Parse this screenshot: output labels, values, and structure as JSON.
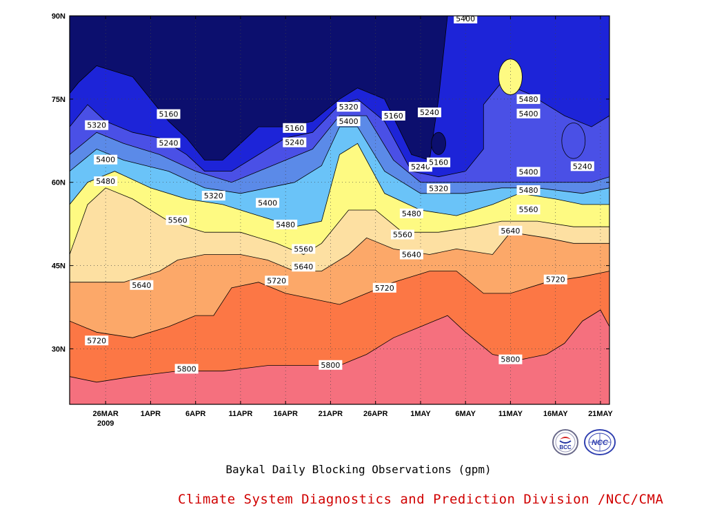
{
  "chart_data": {
    "type": "heatmap",
    "subtype": "filled-contour time-latitude section",
    "title": "Baykal Daily Blocking Observations (gpm)",
    "credit": "Climate System Diagnostics and Prediction Division /NCC/CMA",
    "x_axis": {
      "ticks": [
        "26MAR",
        "1APR",
        "6APR",
        "11APR",
        "16APR",
        "21APR",
        "26APR",
        "1MAY",
        "6MAY",
        "11MAY",
        "16MAY",
        "21MAY"
      ],
      "year_label": "2009",
      "range": [
        "2009-03-22",
        "2009-05-21"
      ]
    },
    "y_axis": {
      "ticks": [
        "30N",
        "45N",
        "60N",
        "75N",
        "90N"
      ],
      "tick_values": [
        30,
        45,
        60,
        75,
        90
      ],
      "range": [
        20,
        90
      ]
    },
    "levels": [
      5160,
      5240,
      5320,
      5400,
      5480,
      5560,
      5640,
      5720,
      5800
    ],
    "colors": [
      "#0c0f6e",
      "#1d24d8",
      "#4a50e6",
      "#5b8ae8",
      "#6ac3f8",
      "#fefa82",
      "#fde0a2",
      "#fca869",
      "#fc7745",
      "#f5707e"
    ],
    "color_bands": [
      {
        "range": "< 5160",
        "color": "#0c0f6e"
      },
      {
        "range": "5160-5240",
        "color": "#1d24d8"
      },
      {
        "range": "5240-5320",
        "color": "#4a50e6"
      },
      {
        "range": "5320-5400",
        "color": "#5b8ae8"
      },
      {
        "range": "5400-5480",
        "color": "#6ac3f8"
      },
      {
        "range": "5480-5560",
        "color": "#fefa82"
      },
      {
        "range": "5560-5640",
        "color": "#fde0a2"
      },
      {
        "range": "5640-5720",
        "color": "#fca869"
      },
      {
        "range": "5720-5800",
        "color": "#fc7745"
      },
      {
        "range": "> 5800",
        "color": "#f5707e"
      }
    ],
    "contours": [
      {
        "level": 5160,
        "points": [
          [
            "2009-03-22",
            76
          ],
          [
            "2009-03-23",
            78
          ],
          [
            "2009-03-25",
            81
          ],
          [
            "2009-03-27",
            80
          ],
          [
            "2009-03-29",
            79
          ],
          [
            "2009-03-31",
            75
          ],
          [
            "2009-04-02",
            71
          ],
          [
            "2009-04-04",
            68
          ],
          [
            "2009-04-06",
            64
          ],
          [
            "2009-04-08",
            64
          ],
          [
            "2009-04-10",
            67
          ],
          [
            "2009-04-12",
            70
          ],
          [
            "2009-04-15",
            70
          ],
          [
            "2009-04-18",
            71
          ],
          [
            "2009-04-21",
            75
          ],
          [
            "2009-04-23",
            77
          ],
          [
            "2009-04-26",
            75
          ],
          [
            "2009-04-29",
            65
          ],
          [
            "2009-05-01",
            64
          ],
          [
            "2009-05-02",
            75
          ],
          [
            "2009-05-03",
            90
          ]
        ]
      },
      {
        "level": 5240,
        "points": [
          [
            "2009-03-22",
            70
          ],
          [
            "2009-03-24",
            74
          ],
          [
            "2009-03-26",
            71
          ],
          [
            "2009-03-29",
            69
          ],
          [
            "2009-04-01",
            68
          ],
          [
            "2009-04-04",
            65
          ],
          [
            "2009-04-06",
            62
          ],
          [
            "2009-04-09",
            62
          ],
          [
            "2009-04-12",
            65
          ],
          [
            "2009-04-15",
            68
          ],
          [
            "2009-04-18",
            69
          ],
          [
            "2009-04-21",
            74
          ],
          [
            "2009-04-23",
            75
          ],
          [
            "2009-04-26",
            71
          ],
          [
            "2009-04-29",
            62
          ],
          [
            "2009-05-02",
            61
          ],
          [
            "2009-05-05",
            62
          ],
          [
            "2009-05-07",
            66
          ],
          [
            "2009-05-07",
            74
          ],
          [
            "2009-05-09",
            78
          ],
          [
            "2009-05-12",
            76
          ],
          [
            "2009-05-16",
            72
          ],
          [
            "2009-05-19",
            70
          ],
          [
            "2009-05-21",
            72
          ]
        ]
      },
      {
        "level": 5320,
        "points": [
          [
            "2009-03-22",
            65
          ],
          [
            "2009-03-25",
            69
          ],
          [
            "2009-03-28",
            67
          ],
          [
            "2009-04-01",
            65
          ],
          [
            "2009-04-05",
            62
          ],
          [
            "2009-04-09",
            60
          ],
          [
            "2009-04-12",
            62
          ],
          [
            "2009-04-15",
            64
          ],
          [
            "2009-04-18",
            66
          ],
          [
            "2009-04-21",
            72
          ],
          [
            "2009-04-24",
            72
          ],
          [
            "2009-04-27",
            64
          ],
          [
            "2009-04-30",
            60
          ],
          [
            "2009-05-04",
            60
          ],
          [
            "2009-05-08",
            60
          ],
          [
            "2009-05-12",
            60
          ],
          [
            "2009-05-16",
            60
          ],
          [
            "2009-05-19",
            60
          ],
          [
            "2009-05-21",
            61
          ]
        ]
      },
      {
        "level": 5400,
        "points": [
          [
            "2009-03-22",
            62
          ],
          [
            "2009-03-25",
            66
          ],
          [
            "2009-03-28",
            64
          ],
          [
            "2009-04-02",
            62
          ],
          [
            "2009-04-06",
            59
          ],
          [
            "2009-04-10",
            58
          ],
          [
            "2009-04-13",
            59
          ],
          [
            "2009-04-16",
            60
          ],
          [
            "2009-04-19",
            63
          ],
          [
            "2009-04-21",
            70
          ],
          [
            "2009-04-23",
            70
          ],
          [
            "2009-04-26",
            62
          ],
          [
            "2009-04-30",
            58
          ],
          [
            "2009-05-05",
            58
          ],
          [
            "2009-05-09",
            59
          ],
          [
            "2009-05-13",
            59
          ],
          [
            "2009-05-18",
            58
          ],
          [
            "2009-05-21",
            59
          ]
        ]
      },
      {
        "level": 5480,
        "points": [
          [
            "2009-03-22",
            56
          ],
          [
            "2009-03-24",
            60
          ],
          [
            "2009-03-27",
            62
          ],
          [
            "2009-03-31",
            59
          ],
          [
            "2009-04-04",
            57
          ],
          [
            "2009-04-08",
            56
          ],
          [
            "2009-04-12",
            54
          ],
          [
            "2009-04-16",
            52
          ],
          [
            "2009-04-19",
            53
          ],
          [
            "2009-04-21",
            65
          ],
          [
            "2009-04-23",
            67
          ],
          [
            "2009-04-26",
            58
          ],
          [
            "2009-04-30",
            55
          ],
          [
            "2009-05-04",
            54
          ],
          [
            "2009-05-08",
            56
          ],
          [
            "2009-05-11",
            58
          ],
          [
            "2009-05-15",
            57
          ],
          [
            "2009-05-18",
            56
          ],
          [
            "2009-05-21",
            56
          ]
        ]
      },
      {
        "level": 5560,
        "points": [
          [
            "2009-03-22",
            47
          ],
          [
            "2009-03-24",
            56
          ],
          [
            "2009-03-26",
            59
          ],
          [
            "2009-03-29",
            57
          ],
          [
            "2009-04-02",
            53
          ],
          [
            "2009-04-06",
            51
          ],
          [
            "2009-04-10",
            51
          ],
          [
            "2009-04-14",
            49
          ],
          [
            "2009-04-17",
            47
          ],
          [
            "2009-04-19",
            49
          ],
          [
            "2009-04-22",
            55
          ],
          [
            "2009-04-25",
            55
          ],
          [
            "2009-04-28",
            51
          ],
          [
            "2009-05-02",
            51
          ],
          [
            "2009-05-06",
            52
          ],
          [
            "2009-05-09",
            53
          ],
          [
            "2009-05-13",
            53
          ],
          [
            "2009-05-17",
            52
          ],
          [
            "2009-05-21",
            52
          ]
        ]
      },
      {
        "level": 5640,
        "points": [
          [
            "2009-03-22",
            42
          ],
          [
            "2009-03-25",
            42
          ],
          [
            "2009-03-28",
            42
          ],
          [
            "2009-04-01",
            44
          ],
          [
            "2009-04-03",
            46
          ],
          [
            "2009-04-06",
            47
          ],
          [
            "2009-04-10",
            47
          ],
          [
            "2009-04-13",
            46
          ],
          [
            "2009-04-16",
            44
          ],
          [
            "2009-04-19",
            44
          ],
          [
            "2009-04-22",
            47
          ],
          [
            "2009-04-24",
            50
          ],
          [
            "2009-04-27",
            48
          ],
          [
            "2009-05-01",
            47
          ],
          [
            "2009-05-04",
            48
          ],
          [
            "2009-05-08",
            47
          ],
          [
            "2009-05-10",
            51
          ],
          [
            "2009-05-14",
            50
          ],
          [
            "2009-05-17",
            49
          ],
          [
            "2009-05-21",
            49
          ]
        ]
      },
      {
        "level": 5720,
        "points": [
          [
            "2009-03-22",
            35
          ],
          [
            "2009-03-25",
            33
          ],
          [
            "2009-03-29",
            32
          ],
          [
            "2009-04-02",
            34
          ],
          [
            "2009-04-05",
            36
          ],
          [
            "2009-04-07",
            36
          ],
          [
            "2009-04-09",
            41
          ],
          [
            "2009-04-12",
            42
          ],
          [
            "2009-04-15",
            40
          ],
          [
            "2009-04-18",
            39
          ],
          [
            "2009-04-21",
            38
          ],
          [
            "2009-04-24",
            40
          ],
          [
            "2009-04-27",
            42
          ],
          [
            "2009-05-01",
            44
          ],
          [
            "2009-05-04",
            44
          ],
          [
            "2009-05-07",
            40
          ],
          [
            "2009-05-10",
            40
          ],
          [
            "2009-05-14",
            42
          ],
          [
            "2009-05-18",
            43
          ],
          [
            "2009-05-21",
            44
          ]
        ]
      },
      {
        "level": 5800,
        "points": [
          [
            "2009-03-22",
            25
          ],
          [
            "2009-03-25",
            24
          ],
          [
            "2009-03-29",
            25
          ],
          [
            "2009-04-03",
            26
          ],
          [
            "2009-04-08",
            26
          ],
          [
            "2009-04-13",
            27
          ],
          [
            "2009-04-18",
            27
          ],
          [
            "2009-04-21",
            27
          ],
          [
            "2009-04-24",
            29
          ],
          [
            "2009-04-27",
            32
          ],
          [
            "2009-04-30",
            34
          ],
          [
            "2009-05-03",
            36
          ],
          [
            "2009-05-05",
            33
          ],
          [
            "2009-05-08",
            29
          ],
          [
            "2009-05-11",
            28
          ],
          [
            "2009-05-14",
            29
          ],
          [
            "2009-05-16",
            31
          ],
          [
            "2009-05-18",
            35
          ],
          [
            "2009-05-20",
            37
          ],
          [
            "2009-05-21",
            34
          ]
        ]
      }
    ],
    "closed_contours": [
      {
        "level": 5480,
        "center": [
          "2009-05-10",
          79
        ],
        "half_width_days": 1.3,
        "half_height_lat": 3.2
      },
      {
        "level": 5240,
        "center": [
          "2009-05-17",
          67.5
        ],
        "half_width_days": 1.3,
        "half_height_lat": 3.2
      },
      {
        "level": 5160,
        "center": [
          "2009-05-02",
          67
        ],
        "half_width_days": 0.8,
        "half_height_lat": 2.0
      }
    ],
    "contour_labels": [
      {
        "text": "5400",
        "x": "2009-05-05",
        "y": 89.5
      },
      {
        "text": "5320",
        "x": "2009-03-25",
        "y": 70.3
      },
      {
        "text": "5160",
        "x": "2009-04-02",
        "y": 72.3
      },
      {
        "text": "5240",
        "x": "2009-04-02",
        "y": 67.1
      },
      {
        "text": "5400",
        "x": "2009-03-26",
        "y": 64.1
      },
      {
        "text": "5480",
        "x": "2009-03-26",
        "y": 60.2
      },
      {
        "text": "5320",
        "x": "2009-04-07",
        "y": 57.6
      },
      {
        "text": "5160",
        "x": "2009-04-16",
        "y": 69.8
      },
      {
        "text": "5240",
        "x": "2009-04-16",
        "y": 67.2
      },
      {
        "text": "5400",
        "x": "2009-04-13",
        "y": 56.3
      },
      {
        "text": "5480",
        "x": "2009-04-15",
        "y": 52.4
      },
      {
        "text": "5320",
        "x": "2009-04-22",
        "y": 73.6
      },
      {
        "text": "5400",
        "x": "2009-04-22",
        "y": 71.0
      },
      {
        "text": "5160",
        "x": "2009-04-27",
        "y": 72.0
      },
      {
        "text": "5240",
        "x": "2009-05-01",
        "y": 72.6
      },
      {
        "text": "5240",
        "x": "2009-04-30",
        "y": 62.8
      },
      {
        "text": "5160",
        "x": "2009-05-02",
        "y": 63.6
      },
      {
        "text": "5320",
        "x": "2009-05-02",
        "y": 58.9
      },
      {
        "text": "5480",
        "x": "2009-04-29",
        "y": 54.4
      },
      {
        "text": "5560",
        "x": "2009-04-28",
        "y": 50.6
      },
      {
        "text": "5560",
        "x": "2009-04-03",
        "y": 53.2
      },
      {
        "text": "5560",
        "x": "2009-04-17",
        "y": 48.0
      },
      {
        "text": "5640",
        "x": "2009-03-30",
        "y": 41.5
      },
      {
        "text": "5640",
        "x": "2009-04-17",
        "y": 44.8
      },
      {
        "text": "5640",
        "x": "2009-04-29",
        "y": 47.0
      },
      {
        "text": "5720",
        "x": "2009-04-14",
        "y": 42.3
      },
      {
        "text": "5720",
        "x": "2009-04-26",
        "y": 41.0
      },
      {
        "text": "5720",
        "x": "2009-03-25",
        "y": 31.5
      },
      {
        "text": "5800",
        "x": "2009-04-04",
        "y": 26.4
      },
      {
        "text": "5800",
        "x": "2009-04-20",
        "y": 27.1
      },
      {
        "text": "5480",
        "x": "2009-05-12",
        "y": 75.0
      },
      {
        "text": "5400",
        "x": "2009-05-12",
        "y": 72.4
      },
      {
        "text": "5400",
        "x": "2009-05-12",
        "y": 61.9
      },
      {
        "text": "5480",
        "x": "2009-05-12",
        "y": 58.6
      },
      {
        "text": "5560",
        "x": "2009-05-12",
        "y": 55.1
      },
      {
        "text": "5640",
        "x": "2009-05-10",
        "y": 51.3
      },
      {
        "text": "5720",
        "x": "2009-05-15",
        "y": 42.5
      },
      {
        "text": "5240",
        "x": "2009-05-18",
        "y": 62.9
      },
      {
        "text": "5800",
        "x": "2009-05-10",
        "y": 28.1
      }
    ],
    "grid": true,
    "grid_style": "dotted"
  },
  "logos": [
    {
      "name": "bcc-logo",
      "text": "BCC"
    },
    {
      "name": "ncc-logo",
      "text": "NCC"
    }
  ]
}
